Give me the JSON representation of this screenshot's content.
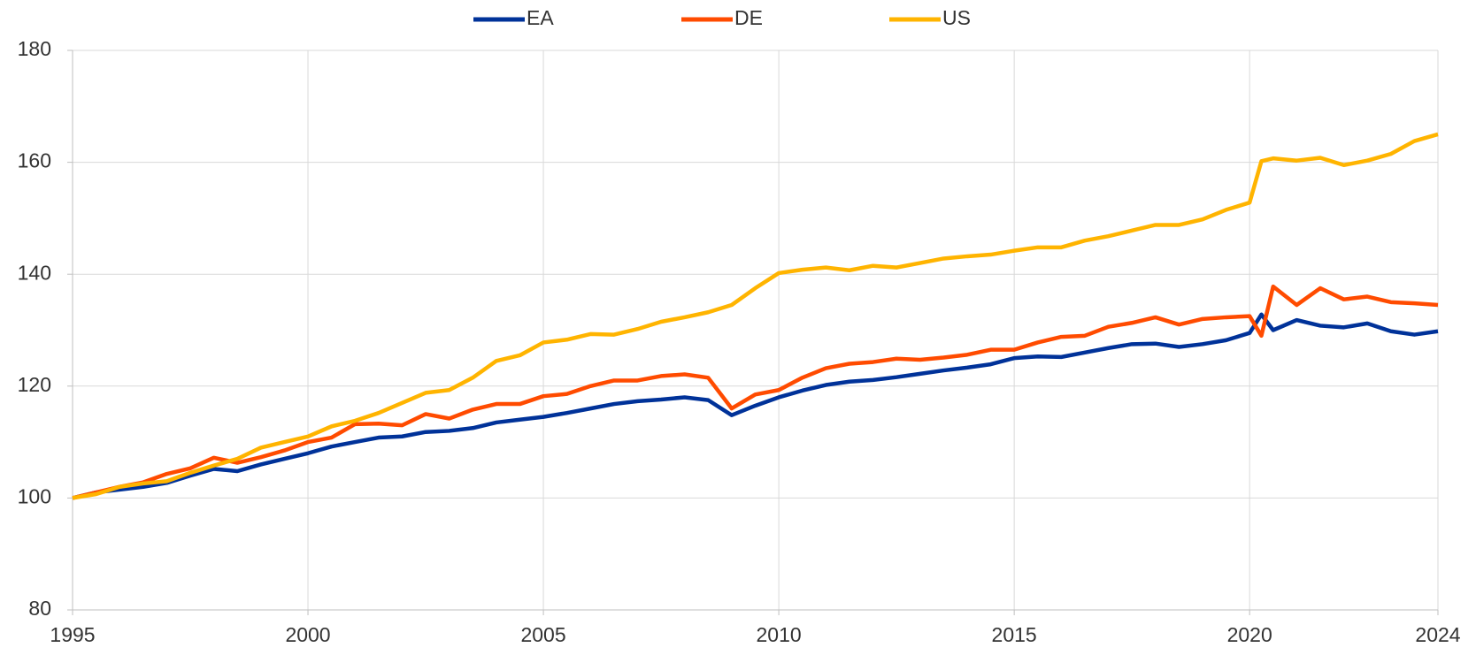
{
  "chart_data": {
    "type": "line",
    "x": [
      1995,
      1995.5,
      1996,
      1996.5,
      1997,
      1997.5,
      1998,
      1998.5,
      1999,
      1999.5,
      2000,
      2000.5,
      2001,
      2001.5,
      2002,
      2002.5,
      2003,
      2003.5,
      2004,
      2004.5,
      2005,
      2005.5,
      2006,
      2006.5,
      2007,
      2007.5,
      2008,
      2008.5,
      2009,
      2009.5,
      2010,
      2010.5,
      2011,
      2011.5,
      2012,
      2012.5,
      2013,
      2013.5,
      2014,
      2014.5,
      2015,
      2015.5,
      2016,
      2016.5,
      2017,
      2017.5,
      2018,
      2018.5,
      2019,
      2019.5,
      2020,
      2020.25,
      2020.5,
      2021,
      2021.5,
      2022,
      2022.5,
      2023,
      2023.5,
      2024
    ],
    "series": [
      {
        "name": "EA",
        "color": "#003299",
        "values": [
          100,
          101,
          101.5,
          102,
          102.7,
          104,
          105.2,
          104.8,
          106,
          107,
          108,
          109.2,
          110,
          110.8,
          111,
          111.8,
          112,
          112.5,
          113.5,
          114,
          114.5,
          115.2,
          116,
          116.8,
          117.3,
          117.6,
          118,
          117.5,
          114.8,
          116.5,
          118,
          119.2,
          120.2,
          120.8,
          121.1,
          121.6,
          122.2,
          122.8,
          123.3,
          123.9,
          125,
          125.3,
          125.2,
          126,
          126.8,
          127.5,
          127.6,
          127,
          127.5,
          128.2,
          129.5,
          132.8,
          130,
          131.8,
          130.8,
          130.5,
          131.2,
          129.8,
          129.2,
          129.8
        ]
      },
      {
        "name": "DE",
        "color": "#ff4b00",
        "values": [
          100,
          101,
          102,
          102.8,
          104.3,
          105.3,
          107.2,
          106.3,
          107.3,
          108.5,
          110,
          110.8,
          113.2,
          113.3,
          113,
          115,
          114.2,
          115.8,
          116.8,
          116.8,
          118.2,
          118.6,
          120,
          121,
          121,
          121.8,
          122.1,
          121.5,
          116,
          118.5,
          119.3,
          121.5,
          123.2,
          124,
          124.3,
          124.9,
          124.7,
          125.1,
          125.6,
          126.5,
          126.5,
          127.8,
          128.8,
          129,
          130.6,
          131.3,
          132.3,
          131,
          132,
          132.3,
          132.5,
          129,
          137.8,
          134.5,
          137.5,
          135.5,
          136,
          135,
          134.8,
          134.5
        ]
      },
      {
        "name": "US",
        "color": "#ffb400",
        "values": [
          100,
          100.7,
          102,
          102.6,
          103,
          104.5,
          105.8,
          107,
          109,
          110,
          111,
          112.8,
          113.8,
          115.2,
          117,
          118.8,
          119.3,
          121.5,
          124.5,
          125.5,
          127.8,
          128.3,
          129.3,
          129.2,
          130.2,
          131.5,
          132.3,
          133.2,
          134.5,
          137.5,
          140.2,
          140.8,
          141.2,
          140.7,
          141.5,
          141.2,
          142,
          142.8,
          143.2,
          143.5,
          144.2,
          144.8,
          144.8,
          146,
          146.8,
          147.8,
          148.8,
          148.8,
          149.8,
          151.5,
          152.8,
          160.2,
          160.7,
          160.3,
          160.8,
          159.5,
          160.3,
          161.5,
          163.8,
          165
        ]
      }
    ],
    "xlim": [
      1995,
      2024
    ],
    "xticks": [
      1995,
      2000,
      2005,
      2010,
      2015,
      2020,
      2024
    ],
    "ylim": [
      80,
      180
    ],
    "yticks": [
      80,
      100,
      120,
      140,
      160,
      180
    ],
    "grid": true,
    "legend": "top"
  }
}
